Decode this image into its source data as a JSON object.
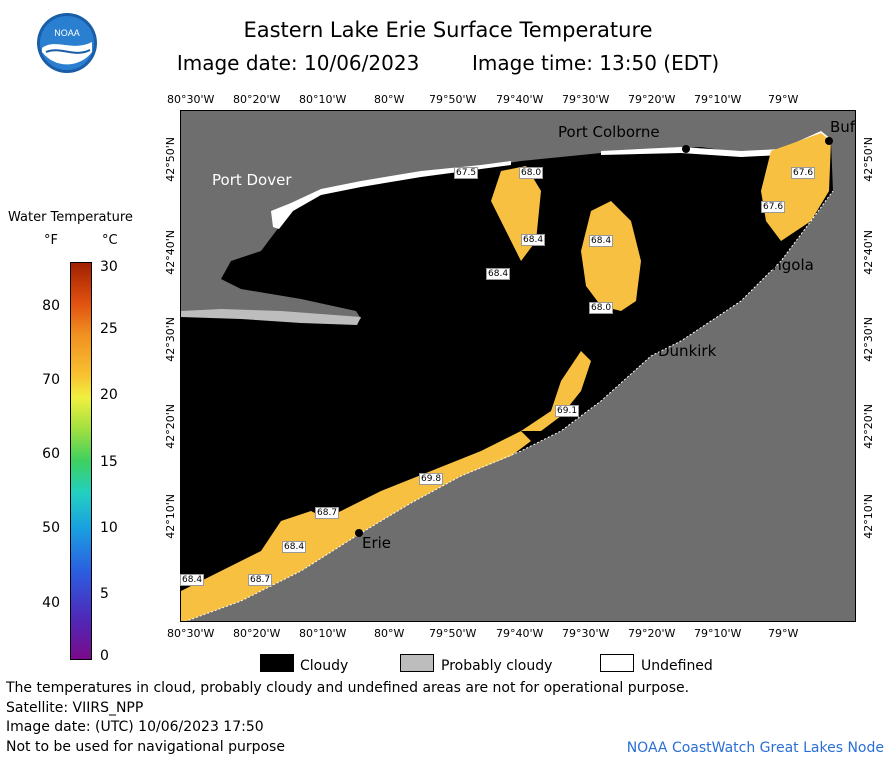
{
  "header": {
    "title": "Eastern Lake Erie Surface Temperature",
    "image_date": "Image date: 10/06/2023",
    "image_time": "Image time: 13:50 (EDT)"
  },
  "logo": {
    "text": "NOAA"
  },
  "map": {
    "lon_labels": [
      "80°30'W",
      "80°20'W",
      "80°10'W",
      "80°W",
      "79°50'W",
      "79°40'W",
      "79°30'W",
      "79°20'W",
      "79°10'W",
      "79°W"
    ],
    "lat_labels": [
      "42°50'N",
      "42°40'N",
      "42°30'N",
      "42°20'N",
      "42°10'N"
    ],
    "cities": {
      "port_dover": "Port Dover",
      "port_colborne": "Port Colborne",
      "buffalo": "Buf",
      "angola": "Angola",
      "dunkirk": "Dunkirk",
      "erie": "Erie"
    },
    "temps": [
      "67.5",
      "68.0",
      "67.6",
      "67.6",
      "68.4",
      "68.4",
      "68.4",
      "68.0",
      "69.1",
      "69.8",
      "68.7",
      "68.4",
      "68.4",
      "68.7"
    ],
    "colors": {
      "land": "#6e6e6e",
      "cloud": "#000000",
      "warm": "#f8c040",
      "probably_cloudy": "#bdbdbd",
      "undefined": "#ffffff"
    }
  },
  "legend": {
    "title": "Water Temperature",
    "unit_f": "°F",
    "unit_c": "°C",
    "ticks_f": [
      "80",
      "70",
      "60",
      "50",
      "40"
    ],
    "ticks_c": [
      "30",
      "25",
      "20",
      "15",
      "10",
      "5",
      "0"
    ],
    "items": [
      "Cloudy",
      "Probably cloudy",
      "Undefined"
    ]
  },
  "footer": {
    "note": "The temperatures in cloud, probably cloudy and undefined areas are not for operational purpose.",
    "satellite": "Satellite: VIIRS_NPP",
    "utc": "Image date: (UTC) 10/06/2023  17:50",
    "nav": "Not to be used for navigational purpose",
    "node": "NOAA CoastWatch Great Lakes Node"
  }
}
